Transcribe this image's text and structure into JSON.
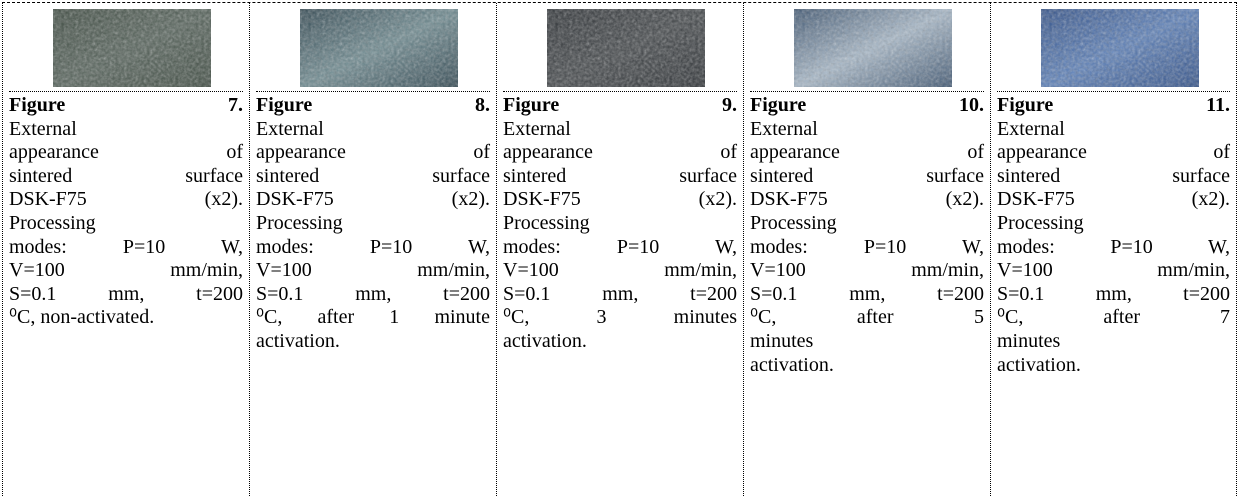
{
  "figures": [
    {
      "label": "Figure 7.",
      "lines": [
        "External",
        "appearance of",
        "sintered surface",
        "DSK-F75 (x2).",
        "Processing",
        "modes: P=10 W,",
        "V=100 mm/min,",
        "S=0.1 mm, t=200",
        "⁰C, non-activated."
      ]
    },
    {
      "label": "Figure 8.",
      "lines": [
        "External",
        "appearance of",
        "sintered surface",
        "DSK-F75 (x2).",
        "Processing",
        "modes: P=10 W,",
        "V=100 mm/min,",
        "S=0.1 mm, t=200",
        "⁰C, after 1 minute",
        "activation."
      ]
    },
    {
      "label": "Figure 9.",
      "lines": [
        "External",
        "appearance of",
        "sintered surface",
        "DSK-F75 (x2).",
        "Processing",
        "modes: P=10 W,",
        "V=100 mm/min,",
        "S=0.1 mm, t=200",
        "⁰C, 3 minutes",
        "activation."
      ]
    },
    {
      "label": "Figure 10.",
      "lines": [
        "External",
        "appearance of",
        "sintered surface",
        "DSK-F75 (x2).",
        "Processing",
        "modes: P=10 W,",
        "V=100 mm/min,",
        "S=0.1 mm, t=200",
        "⁰C, after 5",
        "minutes",
        "activation."
      ]
    },
    {
      "label": "Figure 11.",
      "lines": [
        "External",
        "appearance of",
        "sintered surface",
        "DSK-F75 (x2).",
        "Processing",
        "modes: P=10 W,",
        "V=100 mm/min,",
        "S=0.1 mm, t=200",
        "⁰C, after 7",
        "minutes",
        "activation."
      ]
    }
  ]
}
